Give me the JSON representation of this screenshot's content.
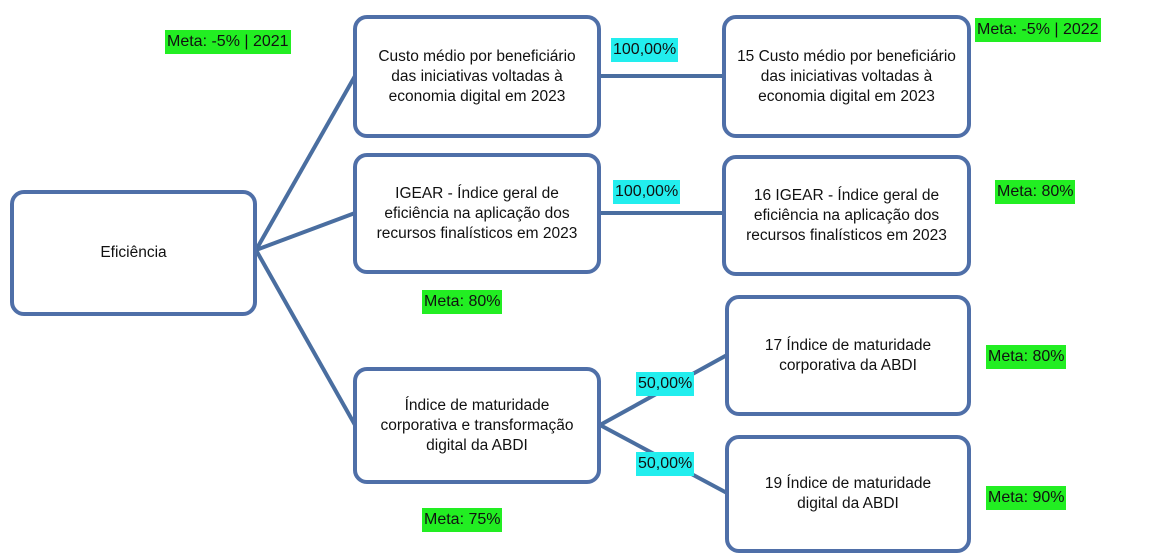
{
  "nodes": [
    {
      "label": "Eficiência"
    },
    {
      "label": "Custo médio por beneficiário das iniciativas voltadas à economia digital em 2023"
    },
    {
      "label": "IGEAR - Índice geral de eficiência na aplicação dos recursos finalísticos em 2023"
    },
    {
      "label": "Índice de maturidade corporativa e transformação digital da ABDI"
    },
    {
      "label": "15 Custo médio por beneficiário das iniciativas voltadas à economia digital em 2023"
    },
    {
      "label": "16 IGEAR - Índice geral de eficiência na aplicação dos recursos finalísticos em 2023"
    },
    {
      "label": "17 Índice de maturidade corporativa da ABDI"
    },
    {
      "label": "19 Índice de maturidade digital da ABDI"
    }
  ],
  "metas": [
    "Meta: -5% | 2021",
    "Meta: -5% | 2022",
    "Meta: 80%",
    "Meta: 80%",
    "Meta: 80%",
    "Meta: 90%",
    "Meta: 75%"
  ],
  "weights": [
    "100,00%",
    "100,00%",
    "50,00%",
    "50,00%"
  ]
}
